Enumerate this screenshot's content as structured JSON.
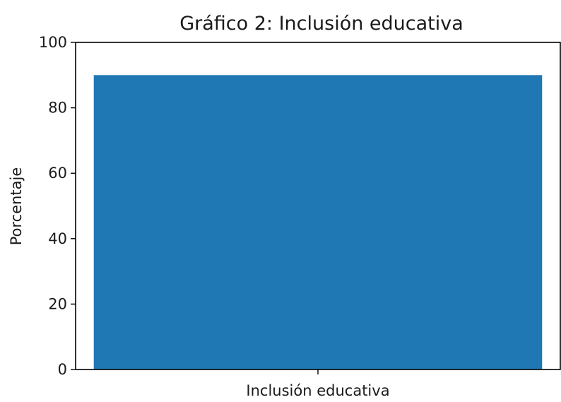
{
  "chart_data": {
    "type": "bar",
    "title": "Gráfico 2: Inclusión educativa",
    "xlabel": "",
    "ylabel": "Porcentaje",
    "categories": [
      "Inclusión educativa"
    ],
    "values": [
      90
    ],
    "ylim": [
      0,
      100
    ],
    "yticks": [
      0,
      20,
      40,
      60,
      80,
      100
    ],
    "grid": false,
    "bar_color": "#1f77b4"
  }
}
